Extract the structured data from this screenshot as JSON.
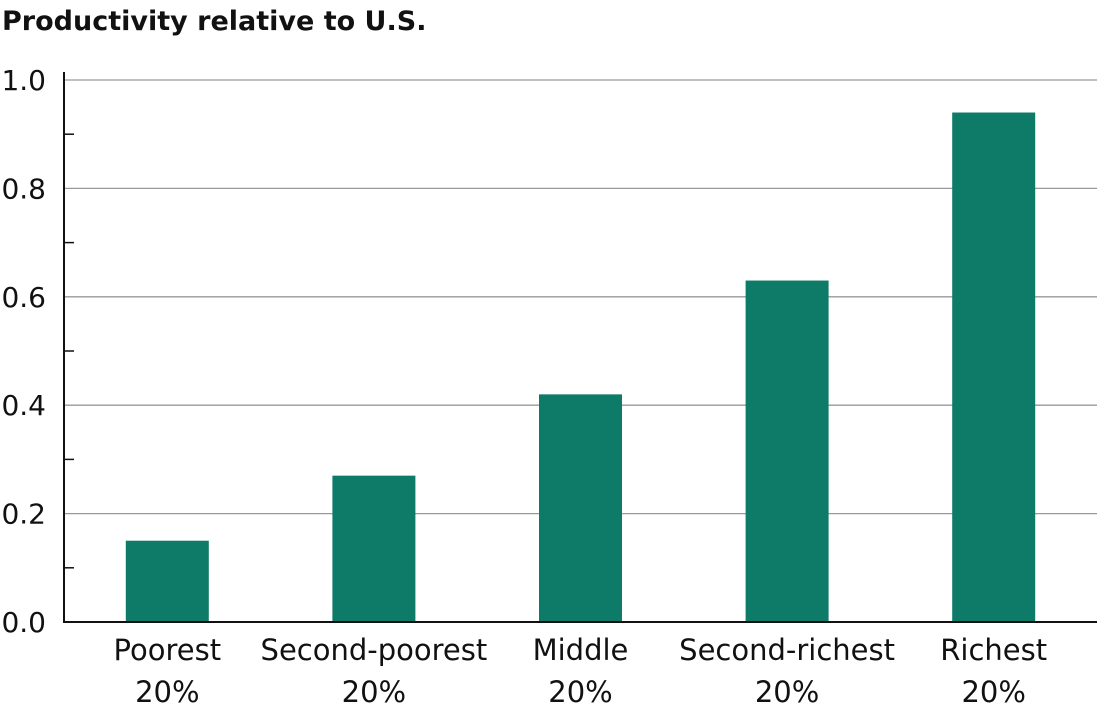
{
  "chart_data": {
    "type": "bar",
    "title": "Productivity relative to U.S.",
    "xlabel": "",
    "ylabel": "",
    "categories": [
      [
        "Poorest",
        "20%"
      ],
      [
        "Second-poorest",
        "20%"
      ],
      [
        "Middle",
        "20%"
      ],
      [
        "Second-richest",
        "20%"
      ],
      [
        "Richest",
        "20%"
      ]
    ],
    "values": [
      0.15,
      0.27,
      0.42,
      0.63,
      0.94
    ],
    "ylim": [
      0,
      1.0
    ],
    "yticks": [
      "0.0",
      "0.2",
      "0.4",
      "0.6",
      "0.8",
      "1.0"
    ],
    "grid": true,
    "bar_color": "#0e7b69"
  }
}
